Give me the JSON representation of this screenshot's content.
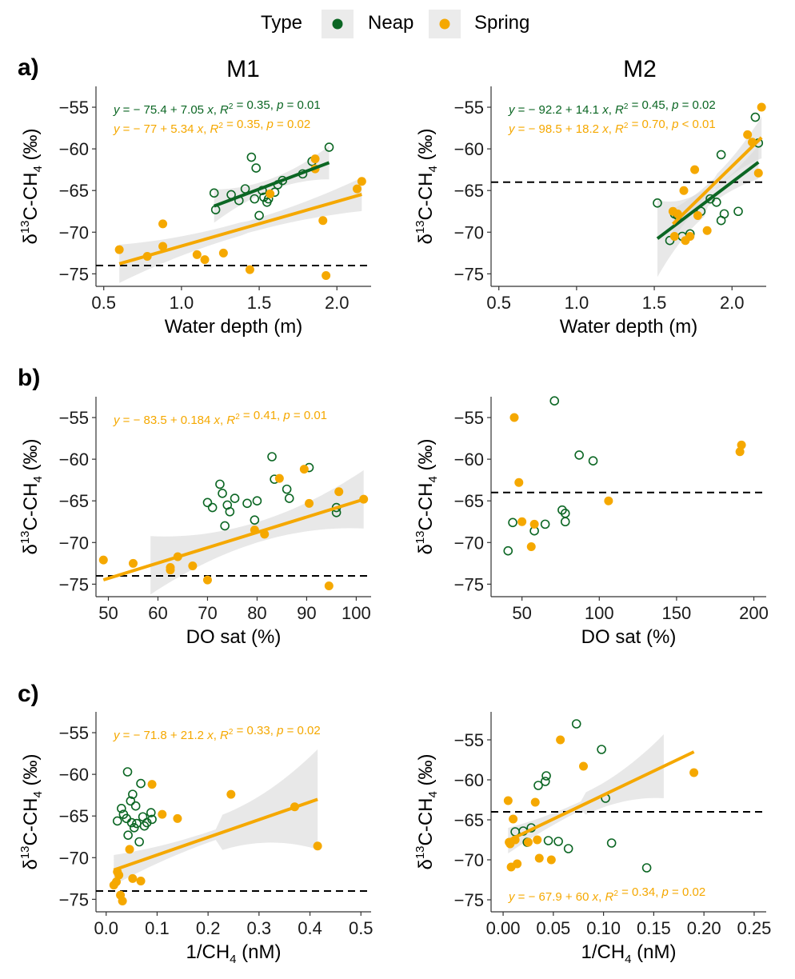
{
  "legend": {
    "title": "Type",
    "items": [
      {
        "label": "Neap",
        "color": "#0b6623"
      },
      {
        "label": "Spring",
        "color": "#f5a800"
      }
    ]
  },
  "columns": [
    "M1",
    "M2"
  ],
  "row_tags": [
    "a)",
    "b)",
    "c)"
  ],
  "chart_data": [
    {
      "type": "scatter",
      "row": 0,
      "col": 0,
      "xlabel": "Water depth (m)",
      "ylabel": "δ13C-CH4 (‰)",
      "xlim": [
        0.45,
        2.22
      ],
      "ylim": [
        -76.5,
        -52.5
      ],
      "xticks": [
        0.5,
        1.0,
        1.5,
        2.0
      ],
      "xtick_labels": [
        "0.5",
        "1.0",
        "1.5",
        "2.0"
      ],
      "yticks": [
        -55,
        -60,
        -65,
        -70,
        -75
      ],
      "ytick_labels": [
        "−55",
        "−60",
        "−65",
        "−70",
        "−75"
      ],
      "reference_y": -74,
      "neap": [
        [
          1.21,
          -65.3
        ],
        [
          1.22,
          -67.3
        ],
        [
          1.32,
          -65.5
        ],
        [
          1.37,
          -66.2
        ],
        [
          1.41,
          -64.8
        ],
        [
          1.45,
          -61.0
        ],
        [
          1.47,
          -66.0
        ],
        [
          1.48,
          -62.3
        ],
        [
          1.5,
          -68.0
        ],
        [
          1.52,
          -65.0
        ],
        [
          1.53,
          -65.8
        ],
        [
          1.55,
          -66.4
        ],
        [
          1.56,
          -66.0
        ],
        [
          1.6,
          -65.2
        ],
        [
          1.62,
          -64.3
        ],
        [
          1.65,
          -63.8
        ],
        [
          1.78,
          -63.0
        ],
        [
          1.84,
          -61.5
        ],
        [
          1.95,
          -59.8
        ]
      ],
      "spring": [
        [
          0.6,
          -72.1
        ],
        [
          0.78,
          -72.9
        ],
        [
          0.88,
          -71.7
        ],
        [
          0.88,
          -69.0
        ],
        [
          1.1,
          -72.7
        ],
        [
          1.15,
          -73.3
        ],
        [
          1.27,
          -72.5
        ],
        [
          1.44,
          -74.5
        ],
        [
          1.57,
          -65.4
        ],
        [
          1.86,
          -61.2
        ],
        [
          1.86,
          -62.4
        ],
        [
          1.91,
          -68.6
        ],
        [
          1.93,
          -75.2
        ],
        [
          2.13,
          -64.8
        ],
        [
          2.16,
          -63.9
        ]
      ],
      "fits": [
        {
          "series": "neap",
          "x": [
            1.21,
            1.95
          ],
          "intercept": -75.4,
          "slope": 7.05,
          "band": [
            2.0,
            2.0
          ]
        },
        {
          "series": "spring",
          "x": [
            0.6,
            2.16
          ],
          "intercept": -77.0,
          "slope": 5.34,
          "band": [
            2.3,
            2.0
          ]
        }
      ],
      "equations": [
        {
          "series": "neap",
          "text": "y = − 75.4 + 7.05 x, R² = 0.35, p = 0.01"
        },
        {
          "series": "spring",
          "text": "y = − 77 + 5.34 x, R² = 0.35, p = 0.02"
        }
      ],
      "eq_pos": "top-left"
    },
    {
      "type": "scatter",
      "row": 0,
      "col": 1,
      "xlabel": "Water depth (m)",
      "ylabel": "δ13C-CH4 (‰)",
      "xlim": [
        0.45,
        2.22
      ],
      "ylim": [
        -76.5,
        -52.5
      ],
      "xticks": [
        0.5,
        1.0,
        1.5,
        2.0
      ],
      "xtick_labels": [
        "0.5",
        "1.0",
        "1.5",
        "2.0"
      ],
      "yticks": [
        -55,
        -60,
        -65,
        -70,
        -75
      ],
      "ytick_labels": [
        "−55",
        "−60",
        "−65",
        "−70",
        "−75"
      ],
      "reference_y": -64,
      "neap": [
        [
          1.52,
          -66.5
        ],
        [
          1.6,
          -71.0
        ],
        [
          1.63,
          -67.8
        ],
        [
          1.65,
          -68.0
        ],
        [
          1.68,
          -70.5
        ],
        [
          1.73,
          -70.2
        ],
        [
          1.8,
          -67.5
        ],
        [
          1.86,
          -66.0
        ],
        [
          1.9,
          -66.4
        ],
        [
          1.93,
          -60.7
        ],
        [
          1.93,
          -68.6
        ],
        [
          1.95,
          -67.8
        ],
        [
          2.04,
          -67.5
        ],
        [
          2.15,
          -56.2
        ],
        [
          2.17,
          -59.3
        ]
      ],
      "spring": [
        [
          1.62,
          -67.5
        ],
        [
          1.63,
          -70.5
        ],
        [
          1.65,
          -67.8
        ],
        [
          1.69,
          -65.0
        ],
        [
          1.7,
          -71.0
        ],
        [
          1.73,
          -70.5
        ],
        [
          1.76,
          -62.5
        ],
        [
          1.78,
          -68.0
        ],
        [
          1.84,
          -69.8
        ],
        [
          2.1,
          -58.3
        ],
        [
          2.13,
          -59.2
        ],
        [
          2.17,
          -62.9
        ],
        [
          2.19,
          -55.0
        ]
      ],
      "fits": [
        {
          "series": "neap",
          "x": [
            1.52,
            2.17
          ],
          "intercept": -92.2,
          "slope": 14.1,
          "band": [
            4.6,
            2.0
          ]
        },
        {
          "series": "spring",
          "x": [
            1.62,
            2.19
          ],
          "intercept": -98.5,
          "slope": 18.2,
          "band": [
            1.8,
            2.5
          ]
        }
      ],
      "equations": [
        {
          "series": "neap",
          "text": "y = − 92.2 + 14.1 x, R² = 0.45, p = 0.02"
        },
        {
          "series": "spring",
          "text": "y = − 98.5 + 18.2 x, R² = 0.70, p < 0.01"
        }
      ],
      "eq_pos": "top-left"
    },
    {
      "type": "scatter",
      "row": 1,
      "col": 0,
      "xlabel": "DO sat (%)",
      "ylabel": "δ13C-CH4 (‰)",
      "xlim": [
        47.5,
        103
      ],
      "ylim": [
        -76.5,
        -52.5
      ],
      "xticks": [
        50,
        60,
        70,
        80,
        90,
        100
      ],
      "xtick_labels": [
        "50",
        "60",
        "70",
        "80",
        "90",
        "100"
      ],
      "yticks": [
        -55,
        -60,
        -65,
        -70,
        -75
      ],
      "ytick_labels": [
        "−55",
        "−60",
        "−65",
        "−70",
        "−75"
      ],
      "reference_y": -74,
      "neap": [
        [
          70.0,
          -65.2
        ],
        [
          71.0,
          -65.8
        ],
        [
          72.5,
          -63.0
        ],
        [
          73.0,
          -64.1
        ],
        [
          73.5,
          -68.0
        ],
        [
          74.0,
          -65.5
        ],
        [
          74.5,
          -66.3
        ],
        [
          75.5,
          -64.7
        ],
        [
          78.0,
          -65.3
        ],
        [
          79.5,
          -67.3
        ],
        [
          80.0,
          -65.0
        ],
        [
          83.0,
          -59.7
        ],
        [
          83.5,
          -62.4
        ],
        [
          86.0,
          -63.6
        ],
        [
          86.5,
          -64.7
        ],
        [
          90.5,
          -61.0
        ],
        [
          96.0,
          -65.8
        ],
        [
          96.0,
          -66.4
        ]
      ],
      "spring": [
        [
          49.0,
          -72.1
        ],
        [
          55.0,
          -72.5
        ],
        [
          62.5,
          -73.0
        ],
        [
          62.5,
          -73.3
        ],
        [
          64.0,
          -71.7
        ],
        [
          67.0,
          -72.8
        ],
        [
          70.0,
          -74.5
        ],
        [
          79.5,
          -68.5
        ],
        [
          81.5,
          -69.0
        ],
        [
          84.5,
          -62.3
        ],
        [
          89.5,
          -61.2
        ],
        [
          90.5,
          -65.3
        ],
        [
          94.5,
          -75.2
        ],
        [
          96.5,
          -63.9
        ],
        [
          101.5,
          -64.8
        ]
      ],
      "fits": [
        {
          "series": "spring",
          "x": [
            49.0,
            101.5
          ],
          "intercept": -83.5,
          "slope": 0.184,
          "band_x": [
            58.5,
            101.5
          ],
          "band": [
            3.5,
            3.5
          ]
        }
      ],
      "equations": [
        {
          "series": "spring",
          "text": "y = − 83.5 + 0.184 x, R² = 0.41, p = 0.01"
        }
      ],
      "eq_pos": "top-left"
    },
    {
      "type": "scatter",
      "row": 1,
      "col": 1,
      "xlabel": "DO sat (%)",
      "ylabel": "δ13C-CH4 (‰)",
      "xlim": [
        30,
        208
      ],
      "ylim": [
        -76.5,
        -52.5
      ],
      "xticks": [
        50,
        100,
        150,
        200
      ],
      "xtick_labels": [
        "50",
        "100",
        "150",
        "200"
      ],
      "yticks": [
        -55,
        -60,
        -65,
        -70,
        -75
      ],
      "ytick_labels": [
        "−55",
        "−60",
        "−65",
        "−70",
        "−75"
      ],
      "reference_y": -64,
      "neap": [
        [
          41,
          -71.0
        ],
        [
          44,
          -67.6
        ],
        [
          58,
          -68.6
        ],
        [
          65,
          -67.8
        ],
        [
          71,
          -53.0
        ],
        [
          76,
          -66.1
        ],
        [
          78,
          -66.5
        ],
        [
          78,
          -67.5
        ],
        [
          87,
          -59.5
        ],
        [
          96,
          -60.2
        ]
      ],
      "spring": [
        [
          45,
          -55.0
        ],
        [
          48,
          -62.8
        ],
        [
          50,
          -67.5
        ],
        [
          56,
          -70.5
        ],
        [
          58,
          -67.8
        ],
        [
          106,
          -65.0
        ],
        [
          191,
          -59.1
        ],
        [
          192,
          -58.3
        ]
      ],
      "fits": [],
      "equations": []
    },
    {
      "type": "scatter",
      "row": 2,
      "col": 0,
      "xlabel": "1/CH4 (nM)",
      "ylabel": "δ13C-CH4 (‰)",
      "xlim": [
        -0.02,
        0.52
      ],
      "ylim": [
        -76.5,
        -52.5
      ],
      "xticks": [
        0.0,
        0.1,
        0.2,
        0.3,
        0.4,
        0.5
      ],
      "xtick_labels": [
        "0.0",
        "0.1",
        "0.2",
        "0.3",
        "0.4",
        "0.5"
      ],
      "yticks": [
        -55,
        -60,
        -65,
        -70,
        -75
      ],
      "ytick_labels": [
        "−55",
        "−60",
        "−65",
        "−70",
        "−75"
      ],
      "reference_y": -74,
      "neap": [
        [
          0.022,
          -65.6
        ],
        [
          0.03,
          -64.1
        ],
        [
          0.034,
          -64.8
        ],
        [
          0.04,
          -65.3
        ],
        [
          0.042,
          -59.7
        ],
        [
          0.043,
          -67.3
        ],
        [
          0.048,
          -63.2
        ],
        [
          0.05,
          -65.8
        ],
        [
          0.052,
          -62.4
        ],
        [
          0.055,
          -66.4
        ],
        [
          0.058,
          -63.8
        ],
        [
          0.06,
          -65.9
        ],
        [
          0.065,
          -68.1
        ],
        [
          0.068,
          -61.1
        ],
        [
          0.072,
          -65.1
        ],
        [
          0.075,
          -66.2
        ],
        [
          0.08,
          -65.8
        ],
        [
          0.088,
          -64.6
        ],
        [
          0.09,
          -65.4
        ]
      ],
      "spring": [
        [
          0.015,
          -73.3
        ],
        [
          0.02,
          -72.9
        ],
        [
          0.022,
          -71.7
        ],
        [
          0.025,
          -72.1
        ],
        [
          0.028,
          -74.5
        ],
        [
          0.032,
          -75.2
        ],
        [
          0.046,
          -69.0
        ],
        [
          0.052,
          -72.5
        ],
        [
          0.068,
          -72.8
        ],
        [
          0.09,
          -61.2
        ],
        [
          0.11,
          -64.8
        ],
        [
          0.14,
          -65.3
        ],
        [
          0.245,
          -62.4
        ],
        [
          0.37,
          -63.9
        ],
        [
          0.415,
          -68.6
        ]
      ],
      "fits": [
        {
          "series": "spring",
          "x": [
            0.015,
            0.415
          ],
          "intercept": -71.8,
          "slope": 21.2,
          "band": [
            1.8,
            6.0
          ]
        }
      ],
      "equations": [
        {
          "series": "spring",
          "text": "y = − 71.8 + 21.2 x, R² = 0.33, p = 0.02"
        }
      ],
      "eq_pos": "top-left"
    },
    {
      "type": "scatter",
      "row": 2,
      "col": 1,
      "xlabel": "1/CH4 (nM)",
      "ylabel": "δ13C-CH4 (‰)",
      "xlim": [
        -0.012,
        0.262
      ],
      "ylim": [
        -76.5,
        -51.5
      ],
      "xticks": [
        0.0,
        0.05,
        0.1,
        0.15,
        0.2,
        0.25
      ],
      "xtick_labels": [
        "0.00",
        "0.05",
        "0.10",
        "0.15",
        "0.20",
        "0.25"
      ],
      "yticks": [
        -55,
        -60,
        -65,
        -70,
        -75
      ],
      "ytick_labels": [
        "−55",
        "−60",
        "−65",
        "−70",
        "−75"
      ],
      "reference_y": -64,
      "neap": [
        [
          0.012,
          -66.5
        ],
        [
          0.02,
          -66.4
        ],
        [
          0.024,
          -67.8
        ],
        [
          0.028,
          -66.0
        ],
        [
          0.035,
          -60.7
        ],
        [
          0.042,
          -60.2
        ],
        [
          0.043,
          -59.5
        ],
        [
          0.045,
          -67.6
        ],
        [
          0.055,
          -67.7
        ],
        [
          0.065,
          -68.6
        ],
        [
          0.073,
          -53.0
        ],
        [
          0.098,
          -56.2
        ],
        [
          0.102,
          -62.3
        ],
        [
          0.108,
          -67.9
        ],
        [
          0.143,
          -71.0
        ]
      ],
      "spring": [
        [
          0.005,
          -62.6
        ],
        [
          0.006,
          -67.8
        ],
        [
          0.007,
          -68.0
        ],
        [
          0.008,
          -70.9
        ],
        [
          0.01,
          -64.9
        ],
        [
          0.012,
          -67.5
        ],
        [
          0.014,
          -70.5
        ],
        [
          0.025,
          -67.8
        ],
        [
          0.032,
          -62.8
        ],
        [
          0.034,
          -67.5
        ],
        [
          0.036,
          -69.8
        ],
        [
          0.048,
          -70.0
        ],
        [
          0.057,
          -55.0
        ],
        [
          0.08,
          -58.3
        ],
        [
          0.19,
          -59.1
        ]
      ],
      "fits": [
        {
          "series": "spring",
          "x": [
            0.005,
            0.19
          ],
          "intercept": -67.9,
          "slope": 60.0,
          "band_x": [
            0.005,
            0.16
          ],
          "band": [
            1.6,
            4.0
          ]
        }
      ],
      "equations": [
        {
          "series": "spring",
          "text": "y = − 67.9 + 60 x, R² = 0.34, p = 0.02"
        }
      ],
      "eq_pos": "bottom-left"
    }
  ]
}
